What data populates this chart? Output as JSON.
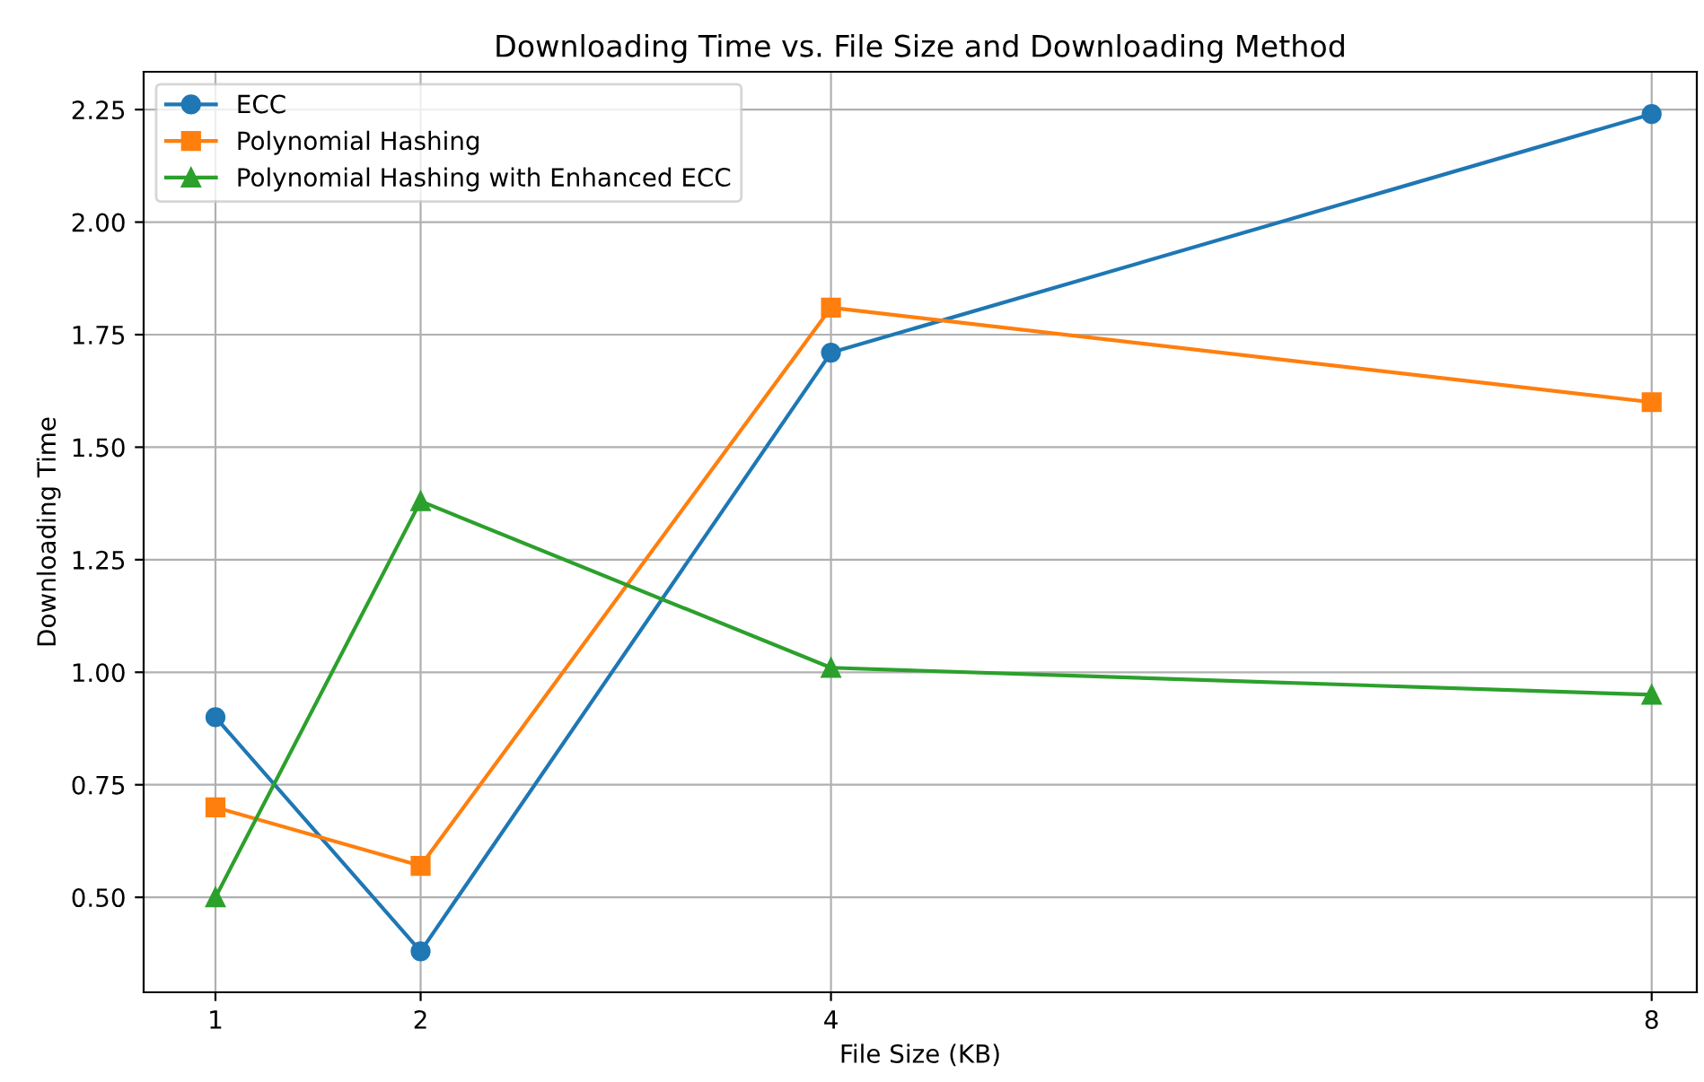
{
  "chart_data": {
    "type": "line",
    "title": "Downloading Time vs. File Size and Downloading Method",
    "xlabel": "File Size (KB)",
    "ylabel": "Downloading Time",
    "x": [
      1,
      2,
      4,
      8
    ],
    "series": [
      {
        "name": "ECC",
        "color": "#1f77b4",
        "marker": "circle",
        "values": [
          0.9,
          0.38,
          1.71,
          2.24
        ]
      },
      {
        "name": "Polynomial Hashing",
        "color": "#ff7f0e",
        "marker": "square",
        "values": [
          0.7,
          0.57,
          1.81,
          1.6
        ]
      },
      {
        "name": "Polynomial Hashing with Enhanced ECC",
        "color": "#2ca02c",
        "marker": "triangle",
        "values": [
          0.5,
          1.38,
          1.01,
          0.95
        ]
      }
    ],
    "xlim": [
      0.65,
      8.22
    ],
    "xticks": [
      1,
      2,
      4,
      8
    ],
    "ylim": [
      0.289,
      2.334
    ],
    "yticks": [
      {
        "value": 0.5,
        "label": "0.50"
      },
      {
        "value": 0.75,
        "label": "0.75"
      },
      {
        "value": 1.0,
        "label": "1.00"
      },
      {
        "value": 1.25,
        "label": "1.25"
      },
      {
        "value": 1.5,
        "label": "1.50"
      },
      {
        "value": 1.75,
        "label": "1.75"
      },
      {
        "value": 2.0,
        "label": "2.00"
      },
      {
        "value": 2.25,
        "label": "2.25"
      }
    ],
    "grid": true,
    "legend": "top left",
    "line_style": "solid"
  }
}
